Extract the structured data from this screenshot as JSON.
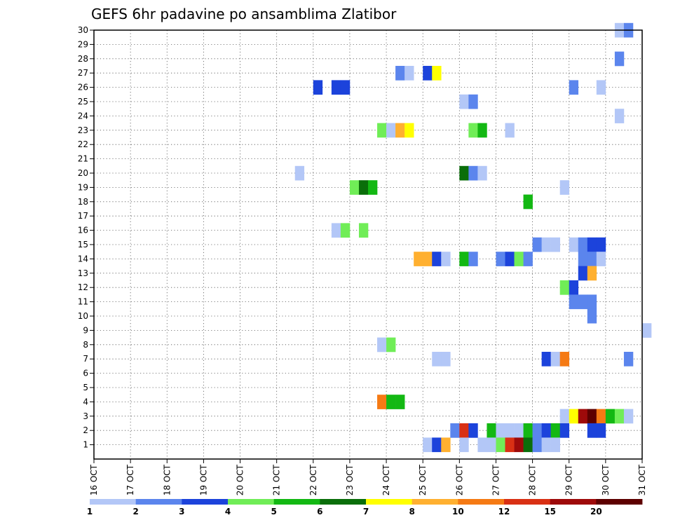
{
  "chart_data": {
    "type": "heatmap",
    "title": "GEFS 6hr padavine po ansamblima Zlatibor",
    "xlabel": "",
    "ylabel": "",
    "x_range": [
      0,
      15
    ],
    "y_range": [
      0,
      30
    ],
    "x_ticks": [
      {
        "value": 0,
        "label": "16 OCT"
      },
      {
        "value": 1,
        "label": "17 OCT"
      },
      {
        "value": 2,
        "label": "18 OCT"
      },
      {
        "value": 3,
        "label": "19 OCT"
      },
      {
        "value": 4,
        "label": "20 OCT"
      },
      {
        "value": 5,
        "label": "21 OCT"
      },
      {
        "value": 6,
        "label": "22 OCT"
      },
      {
        "value": 7,
        "label": "23 OCT"
      },
      {
        "value": 8,
        "label": "24 OCT"
      },
      {
        "value": 9,
        "label": "25 OCT"
      },
      {
        "value": 10,
        "label": "26 OCT"
      },
      {
        "value": 11,
        "label": "27 OCT"
      },
      {
        "value": 12,
        "label": "28 OCT"
      },
      {
        "value": 13,
        "label": "29 OCT"
      },
      {
        "value": 14,
        "label": "30 OCT"
      },
      {
        "value": 15,
        "label": "31 OCT"
      }
    ],
    "y_ticks": [
      "1",
      "2",
      "3",
      "4",
      "5",
      "6",
      "7",
      "8",
      "9",
      "10",
      "11",
      "12",
      "13",
      "14",
      "15",
      "16",
      "17",
      "18",
      "19",
      "20",
      "21",
      "22",
      "23",
      "24",
      "25",
      "26",
      "27",
      "28",
      "29",
      "30"
    ],
    "grid": true,
    "colorbar": {
      "position": "bottom",
      "labels": [
        "1",
        "2",
        "3",
        "4",
        "5",
        "6",
        "7",
        "8",
        "10",
        "12",
        "15",
        "20"
      ],
      "colors": [
        "#b3c7f7",
        "#5b85ed",
        "#1c43db",
        "#70ed57",
        "#13b813",
        "#0a6e0a",
        "#ffff00",
        "#ffb030",
        "#f57a14",
        "#d93014",
        "#9e0a0a",
        "#5e0000"
      ]
    },
    "cells": [
      {
        "d": 14.25,
        "m": 30,
        "c": 0
      },
      {
        "d": 14.5,
        "m": 30,
        "c": 1
      },
      {
        "d": 14.25,
        "m": 28,
        "c": 1
      },
      {
        "d": 8.25,
        "m": 27,
        "c": 1
      },
      {
        "d": 8.5,
        "m": 27,
        "c": 0
      },
      {
        "d": 9.0,
        "m": 27,
        "c": 2
      },
      {
        "d": 9.25,
        "m": 27,
        "c": 6
      },
      {
        "d": 6.0,
        "m": 26,
        "c": 2
      },
      {
        "d": 6.5,
        "m": 26,
        "c": 2
      },
      {
        "d": 6.75,
        "m": 26,
        "c": 2
      },
      {
        "d": 13.0,
        "m": 26,
        "c": 1
      },
      {
        "d": 13.75,
        "m": 26,
        "c": 0
      },
      {
        "d": 10.0,
        "m": 25,
        "c": 0
      },
      {
        "d": 10.25,
        "m": 25,
        "c": 1
      },
      {
        "d": 14.25,
        "m": 24,
        "c": 0
      },
      {
        "d": 7.75,
        "m": 23,
        "c": 3
      },
      {
        "d": 8.0,
        "m": 23,
        "c": 0
      },
      {
        "d": 8.25,
        "m": 23,
        "c": 7
      },
      {
        "d": 8.5,
        "m": 23,
        "c": 6
      },
      {
        "d": 10.25,
        "m": 23,
        "c": 3
      },
      {
        "d": 10.5,
        "m": 23,
        "c": 4
      },
      {
        "d": 11.25,
        "m": 23,
        "c": 0
      },
      {
        "d": 5.5,
        "m": 20,
        "c": 0
      },
      {
        "d": 10.0,
        "m": 20,
        "c": 5
      },
      {
        "d": 10.25,
        "m": 20,
        "c": 1
      },
      {
        "d": 10.5,
        "m": 20,
        "c": 0
      },
      {
        "d": 7.0,
        "m": 19,
        "c": 3
      },
      {
        "d": 7.25,
        "m": 19,
        "c": 5
      },
      {
        "d": 7.5,
        "m": 19,
        "c": 4
      },
      {
        "d": 12.75,
        "m": 19,
        "c": 0
      },
      {
        "d": 11.75,
        "m": 18,
        "c": 4
      },
      {
        "d": 6.5,
        "m": 16,
        "c": 0
      },
      {
        "d": 6.75,
        "m": 16,
        "c": 3
      },
      {
        "d": 7.25,
        "m": 16,
        "c": 3
      },
      {
        "d": 12.0,
        "m": 15,
        "c": 1
      },
      {
        "d": 12.25,
        "m": 15,
        "c": 0
      },
      {
        "d": 12.5,
        "m": 15,
        "c": 0
      },
      {
        "d": 13.0,
        "m": 15,
        "c": 0
      },
      {
        "d": 13.25,
        "m": 15,
        "c": 1
      },
      {
        "d": 13.5,
        "m": 15,
        "c": 2
      },
      {
        "d": 13.75,
        "m": 15,
        "c": 2
      },
      {
        "d": 13.25,
        "m": 14,
        "c": 1
      },
      {
        "d": 13.5,
        "m": 14,
        "c": 1
      },
      {
        "d": 13.75,
        "m": 14,
        "c": 0
      },
      {
        "d": 8.75,
        "m": 14,
        "c": 7
      },
      {
        "d": 9.0,
        "m": 14,
        "c": 7
      },
      {
        "d": 9.25,
        "m": 14,
        "c": 2
      },
      {
        "d": 9.5,
        "m": 14,
        "c": 0
      },
      {
        "d": 10.0,
        "m": 14,
        "c": 4
      },
      {
        "d": 10.25,
        "m": 14,
        "c": 1
      },
      {
        "d": 11.0,
        "m": 14,
        "c": 1
      },
      {
        "d": 11.25,
        "m": 14,
        "c": 2
      },
      {
        "d": 11.5,
        "m": 14,
        "c": 3
      },
      {
        "d": 11.75,
        "m": 14,
        "c": 1
      },
      {
        "d": 13.25,
        "m": 13,
        "c": 2
      },
      {
        "d": 13.5,
        "m": 13,
        "c": 7
      },
      {
        "d": 12.75,
        "m": 12,
        "c": 3
      },
      {
        "d": 13.0,
        "m": 12,
        "c": 2
      },
      {
        "d": 13.0,
        "m": 11,
        "c": 1
      },
      {
        "d": 13.25,
        "m": 11,
        "c": 1
      },
      {
        "d": 13.5,
        "m": 11,
        "c": 1
      },
      {
        "d": 13.5,
        "m": 10,
        "c": 1
      },
      {
        "d": 15.0,
        "m": 9,
        "c": 0
      },
      {
        "d": 7.75,
        "m": 8,
        "c": 0
      },
      {
        "d": 8.0,
        "m": 8,
        "c": 3
      },
      {
        "d": 9.25,
        "m": 7,
        "c": 0
      },
      {
        "d": 9.5,
        "m": 7,
        "c": 0
      },
      {
        "d": 12.25,
        "m": 7,
        "c": 2
      },
      {
        "d": 12.5,
        "m": 7,
        "c": 0
      },
      {
        "d": 12.75,
        "m": 7,
        "c": 8
      },
      {
        "d": 14.5,
        "m": 7,
        "c": 1
      },
      {
        "d": 7.75,
        "m": 4,
        "c": 8
      },
      {
        "d": 8.0,
        "m": 4,
        "c": 4
      },
      {
        "d": 8.25,
        "m": 4,
        "c": 4
      },
      {
        "d": 12.75,
        "m": 3,
        "c": 0
      },
      {
        "d": 13.0,
        "m": 3,
        "c": 6
      },
      {
        "d": 13.25,
        "m": 3,
        "c": 10
      },
      {
        "d": 13.5,
        "m": 3,
        "c": 11
      },
      {
        "d": 13.75,
        "m": 3,
        "c": 8
      },
      {
        "d": 14.0,
        "m": 3,
        "c": 4
      },
      {
        "d": 14.25,
        "m": 3,
        "c": 3
      },
      {
        "d": 14.5,
        "m": 3,
        "c": 0
      },
      {
        "d": 9.75,
        "m": 2,
        "c": 1
      },
      {
        "d": 10.0,
        "m": 2,
        "c": 9
      },
      {
        "d": 10.25,
        "m": 2,
        "c": 2
      },
      {
        "d": 10.75,
        "m": 2,
        "c": 4
      },
      {
        "d": 11.0,
        "m": 2,
        "c": 0
      },
      {
        "d": 11.25,
        "m": 2,
        "c": 0
      },
      {
        "d": 11.5,
        "m": 2,
        "c": 0
      },
      {
        "d": 11.75,
        "m": 2,
        "c": 4
      },
      {
        "d": 12.0,
        "m": 2,
        "c": 1
      },
      {
        "d": 12.25,
        "m": 2,
        "c": 2
      },
      {
        "d": 12.5,
        "m": 2,
        "c": 4
      },
      {
        "d": 12.75,
        "m": 2,
        "c": 2
      },
      {
        "d": 13.5,
        "m": 2,
        "c": 2
      },
      {
        "d": 13.75,
        "m": 2,
        "c": 2
      },
      {
        "d": 9.0,
        "m": 1,
        "c": 0
      },
      {
        "d": 9.25,
        "m": 1,
        "c": 2
      },
      {
        "d": 9.5,
        "m": 1,
        "c": 7
      },
      {
        "d": 10.0,
        "m": 1,
        "c": 0
      },
      {
        "d": 10.5,
        "m": 1,
        "c": 0
      },
      {
        "d": 10.75,
        "m": 1,
        "c": 0
      },
      {
        "d": 11.0,
        "m": 1,
        "c": 3
      },
      {
        "d": 11.25,
        "m": 1,
        "c": 9
      },
      {
        "d": 11.5,
        "m": 1,
        "c": 10
      },
      {
        "d": 11.75,
        "m": 1,
        "c": 5
      },
      {
        "d": 12.0,
        "m": 1,
        "c": 1
      },
      {
        "d": 12.25,
        "m": 1,
        "c": 0
      },
      {
        "d": 12.5,
        "m": 1,
        "c": 0
      }
    ]
  }
}
